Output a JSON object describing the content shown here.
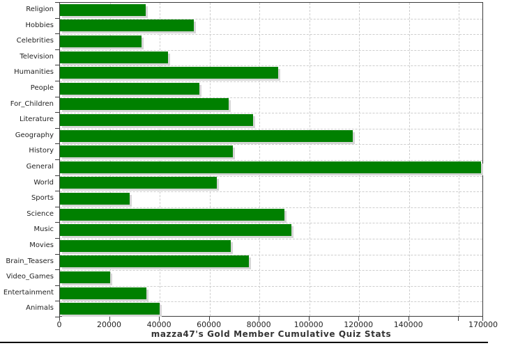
{
  "chart_data": {
    "type": "bar",
    "orientation": "horizontal",
    "title": "mazza47's Gold Member Cumulative Quiz Stats",
    "title_position": "bottom",
    "categories": [
      "Religion",
      "Hobbies",
      "Celebrities",
      "Television",
      "Humanities",
      "People",
      "For_Children",
      "Literature",
      "Geography",
      "History",
      "General",
      "World",
      "Sports",
      "Science",
      "Music",
      "Movies",
      "Brain_Teasers",
      "Video_Games",
      "Entertainment",
      "Animals"
    ],
    "values": [
      34400,
      53700,
      32800,
      43400,
      87600,
      55900,
      67600,
      77300,
      117500,
      69300,
      169000,
      62900,
      28000,
      90100,
      92900,
      68500,
      75800,
      20200,
      34700,
      40000
    ],
    "xlabel": "",
    "ylabel": "",
    "xlim": [
      0,
      170000
    ],
    "x_ticks": [
      {
        "value": 0,
        "label": "0"
      },
      {
        "value": 20000,
        "label": "20000"
      },
      {
        "value": 40000,
        "label": "40000"
      },
      {
        "value": 60000,
        "label": "60000"
      },
      {
        "value": 80000,
        "label": "80000"
      },
      {
        "value": 100000,
        "label": "100000"
      },
      {
        "value": 120000,
        "label": "120000"
      },
      {
        "value": 140000,
        "label": "140000"
      },
      {
        "value": 160000,
        "label": ""
      },
      {
        "value": 170000,
        "label": "170000"
      }
    ],
    "grid": "dashed-gray",
    "legend": "none",
    "bar_color": "#008000",
    "bar_shadow_color": "#d6d6d6",
    "axis_color": "#3a3a3a",
    "grid_color": "#cdcdcd"
  }
}
